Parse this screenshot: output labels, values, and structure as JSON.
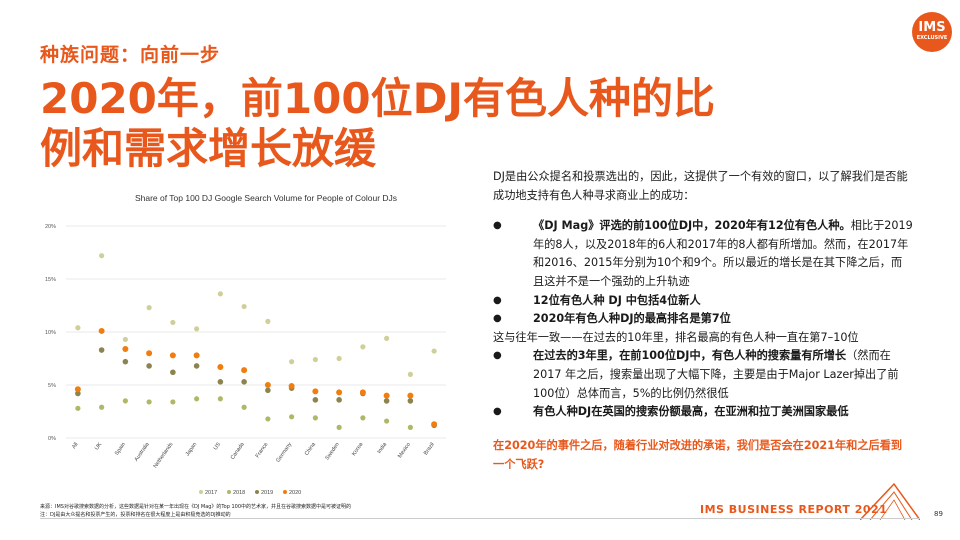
{
  "header": {
    "kicker": "种族问题：向前一步",
    "title": "2020年，前100位DJ有色人种的比例和需求增长放缓"
  },
  "logo": {
    "line1": "IMS",
    "line2": "EXCLUSIVE"
  },
  "body": {
    "intro": "DJ是由公众提名和投票选出的，因此，这提供了一个有效的窗口，以了解我们是否能成功地支持有色人种寻求商业上的成功：",
    "bullet1_bold": "《DJ Mag》评选的前100位DJ中，2020年有12位有色人种。",
    "bullet1_rest": "相比于2019年的8人，以及2018年的6人和2017年的8人都有所增加。然而，在2017年和2016、2015年分别为10个和9个。所以最近的增长是在其下降之后，而且这并不是一个强劲的上升轨迹",
    "bullet2": "12位有色人种 DJ 中包括4位新人",
    "bullet3": "2020年有色人种DJ的最高排名是第7位",
    "bullet3_note": "这与往年一致——在过去的10年里，排名最高的有色人种一直在第7–10位",
    "bullet4_bold": "在过去的3年里，在前100位DJ中，有色人种的搜索量有所增长",
    "bullet4_rest": "（然而在 2017 年之后，搜索量出现了大幅下降，主要是由于Major Lazer掉出了前100位）总体而言，5%的比例仍然很低",
    "bullet5": "有色人种DJ在英国的搜索份额最高，在亚洲和拉丁美洲国家最低",
    "closing": "在2020年的事件之后，随着行业对改进的承诺，我们是否会在2021年和之后看到一个飞跃?"
  },
  "footer": {
    "source": "来源：IMS对谷歌搜索数据的分析，这些数据是针对在某一年出现在《DJ Mag》的Top 100中的艺术家，并且在谷歌搜索数据中是可被证明的",
    "note": "注：DJ是由大众提名和投票产生的，投票和排名在很大程度上是由积极竞选的DJ推动的",
    "report": "IMS BUSINESS REPORT 2021",
    "page": "89"
  },
  "colors": {
    "accent": "#e8581c",
    "y2017": "#cfcf9a",
    "y2018": "#b0b868",
    "y2019": "#8c8450",
    "y2020": "#f07d0e",
    "grid": "#e0e0e0"
  },
  "chart_data": {
    "type": "scatter",
    "title": "Share of Top 100 DJ Google Search Volume for People of Colour DJs",
    "categories": [
      "All",
      "UK",
      "Spain",
      "Australia",
      "Netherlands",
      "Japan",
      "US",
      "Canada",
      "France",
      "Germany",
      "China",
      "Sweden",
      "Korea",
      "India",
      "Mexico",
      "Brazil"
    ],
    "ylim": [
      0,
      20
    ],
    "yticks": [
      "0%",
      "5%",
      "10%",
      "15%",
      "20%"
    ],
    "series": [
      {
        "name": "2017",
        "values": [
          10.4,
          17.2,
          9.3,
          12.3,
          10.9,
          10.3,
          13.6,
          12.4,
          11.0,
          7.2,
          7.4,
          7.5,
          8.6,
          9.4,
          6.0,
          8.2
        ]
      },
      {
        "name": "2018",
        "values": [
          2.8,
          2.9,
          3.5,
          3.4,
          3.4,
          3.7,
          3.7,
          2.9,
          1.8,
          2.0,
          1.9,
          1.0,
          1.9,
          1.6,
          1.0,
          1.3
        ]
      },
      {
        "name": "2019",
        "values": [
          4.2,
          8.3,
          7.2,
          6.8,
          6.2,
          6.8,
          5.3,
          5.3,
          4.5,
          4.7,
          3.6,
          3.6,
          4.2,
          3.5,
          3.5,
          1.2
        ]
      },
      {
        "name": "2020",
        "values": [
          4.6,
          10.1,
          8.4,
          8.0,
          7.8,
          7.8,
          6.7,
          6.4,
          5.0,
          4.9,
          4.4,
          4.3,
          4.3,
          4.0,
          4.0,
          1.3
        ]
      }
    ],
    "legend": "bottom",
    "grid": true
  }
}
